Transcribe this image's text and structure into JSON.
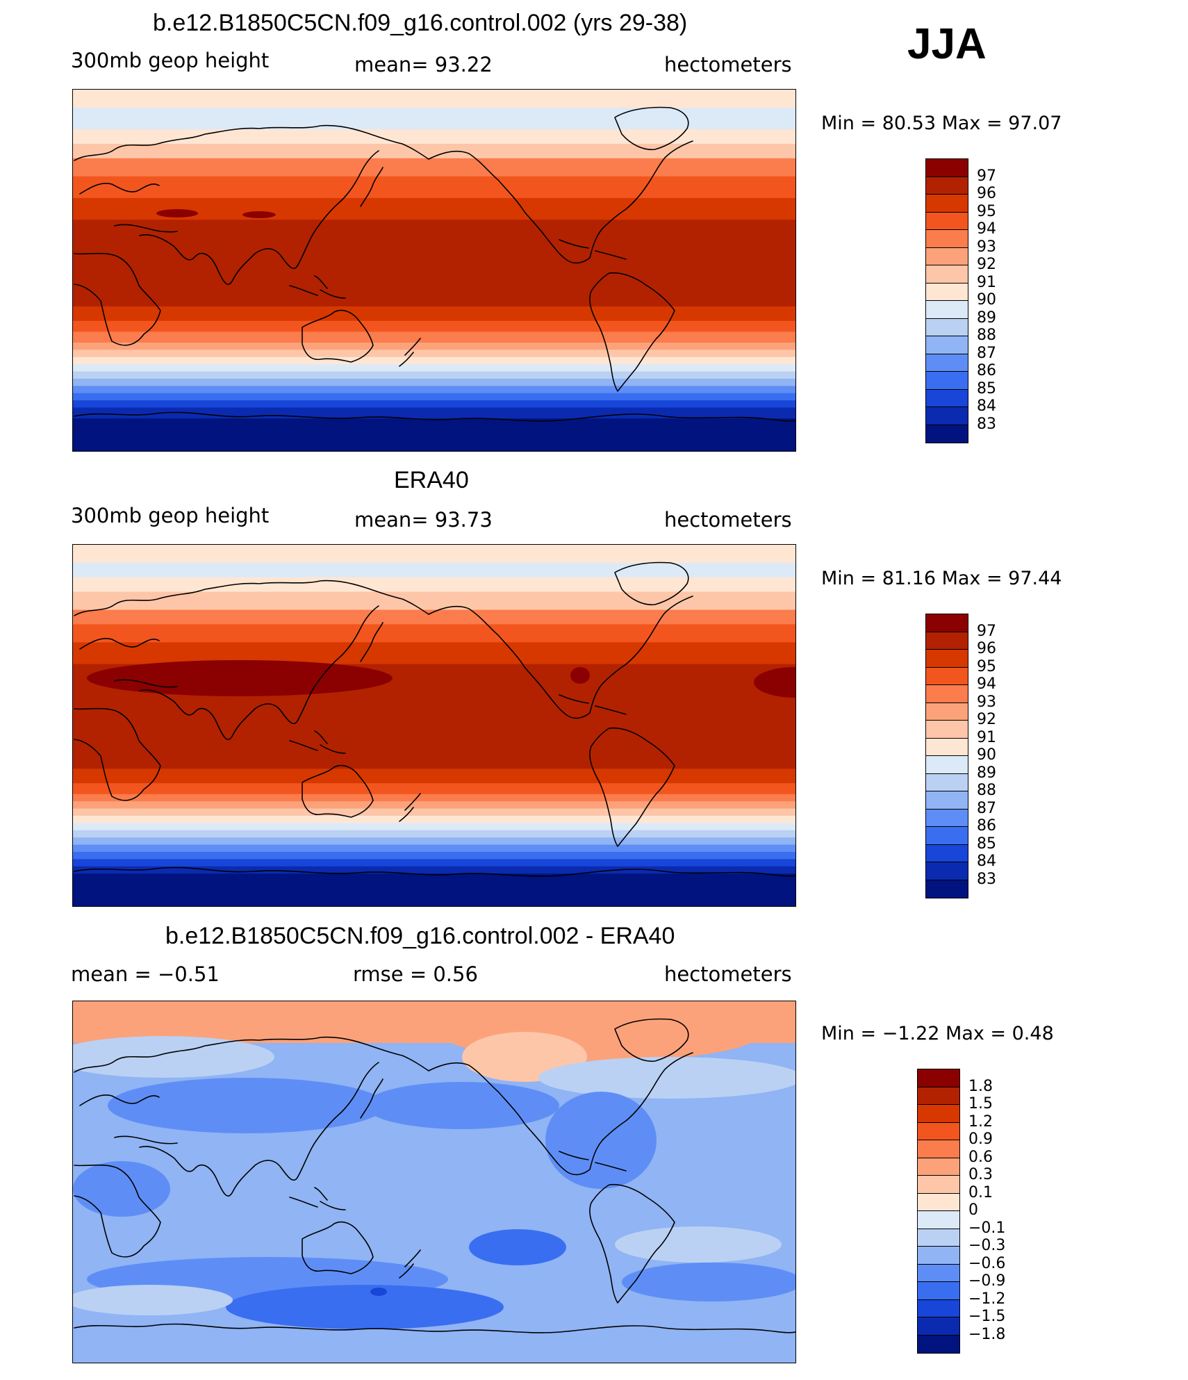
{
  "season": "JJA",
  "panels": [
    {
      "title": "b.e12.B1850C5CN.f09_g16.control.002 (yrs 29-38)",
      "left_label": "300mb  geop  height",
      "center_label": "mean=   93.22",
      "right_label": "hectometers",
      "min_max": "Min  =    80.53  Max  =    97.07",
      "colorbar": {
        "labels": [
          "97",
          "96",
          "95",
          "94",
          "93",
          "92",
          "91",
          "90",
          "89",
          "88",
          "87",
          "86",
          "85",
          "84",
          "83"
        ],
        "colors": [
          "#8b0000",
          "#b22200",
          "#d73800",
          "#f2561e",
          "#fb7c4c",
          "#fca27a",
          "#fdc6a8",
          "#fee6d3",
          "#dce9f7",
          "#bad1f3",
          "#90b4f4",
          "#5e8ef5",
          "#3a6ef0",
          "#1746d8",
          "#0a2bb0",
          "#00137f"
        ]
      },
      "map_style": "control"
    },
    {
      "title": "ERA40",
      "left_label": "300mb  geop  height",
      "center_label": "mean=   93.73",
      "right_label": "hectometers",
      "min_max": "Min  =    81.16  Max  =    97.44",
      "colorbar": {
        "labels": [
          "97",
          "96",
          "95",
          "94",
          "93",
          "92",
          "91",
          "90",
          "89",
          "88",
          "87",
          "86",
          "85",
          "84",
          "83"
        ],
        "colors": [
          "#8b0000",
          "#b22200",
          "#d73800",
          "#f2561e",
          "#fb7c4c",
          "#fca27a",
          "#fdc6a8",
          "#fee6d3",
          "#dce9f7",
          "#bad1f3",
          "#90b4f4",
          "#5e8ef5",
          "#3a6ef0",
          "#1746d8",
          "#0a2bb0",
          "#00137f"
        ]
      },
      "map_style": "era40"
    },
    {
      "title": "b.e12.B1850C5CN.f09_g16.control.002 - ERA40",
      "left_label": "mean  =    −0.51",
      "center_label": "rmse  =     0.56",
      "right_label": "hectometers",
      "min_max": "Min  =    −1.22  Max  =      0.48",
      "colorbar": {
        "labels": [
          "1.8",
          "1.5",
          "1.2",
          "0.9",
          "0.6",
          "0.3",
          "0.1",
          "0",
          "−0.1",
          "−0.3",
          "−0.6",
          "−0.9",
          "−1.2",
          "−1.5",
          "−1.8"
        ],
        "colors": [
          "#8b0000",
          "#b22200",
          "#d73800",
          "#f2561e",
          "#fb7c4c",
          "#fca27a",
          "#fdc6a8",
          "#fee6d3",
          "#dce9f7",
          "#bad1f3",
          "#90b4f4",
          "#5e8ef5",
          "#3a6ef0",
          "#1746d8",
          "#0a2bb0",
          "#00137f"
        ]
      },
      "map_style": "difference"
    }
  ],
  "chart_data": [
    {
      "type": "heatmap",
      "title": "b.e12.B1850C5CN.f09_g16.control.002 (yrs 29-38)",
      "variable": "300mb  geop  height",
      "units": "hectometers",
      "mean": 93.22,
      "min": 80.53,
      "max": 97.07,
      "contour_levels": [
        83,
        84,
        85,
        86,
        87,
        88,
        89,
        90,
        91,
        92,
        93,
        94,
        95,
        96,
        97
      ]
    },
    {
      "type": "heatmap",
      "title": "ERA40",
      "variable": "300mb  geop  height",
      "units": "hectometers",
      "mean": 93.73,
      "min": 81.16,
      "max": 97.44,
      "contour_levels": [
        83,
        84,
        85,
        86,
        87,
        88,
        89,
        90,
        91,
        92,
        93,
        94,
        95,
        96,
        97
      ]
    },
    {
      "type": "heatmap",
      "title": "b.e12.B1850C5CN.f09_g16.control.002 - ERA40",
      "units": "hectometers",
      "mean": -0.51,
      "rmse": 0.56,
      "min": -1.22,
      "max": 0.48,
      "contour_levels": [
        -1.8,
        -1.5,
        -1.2,
        -0.9,
        -0.6,
        -0.3,
        -0.1,
        0,
        0.1,
        0.3,
        0.6,
        0.9,
        1.2,
        1.5,
        1.8
      ]
    }
  ]
}
